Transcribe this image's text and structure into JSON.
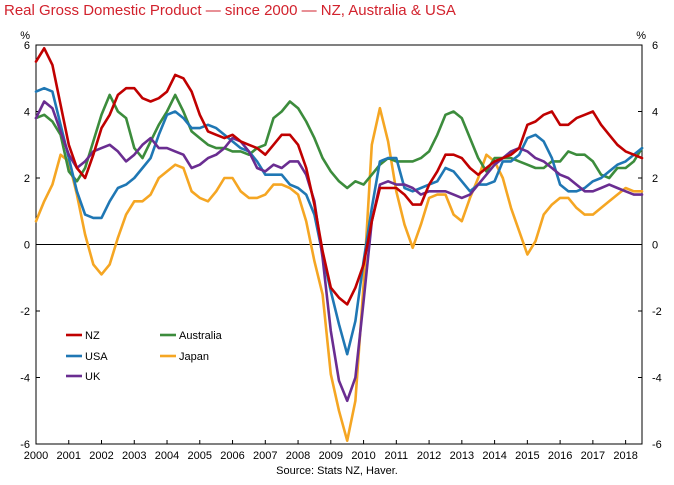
{
  "title": "Real Gross Domestic Product — since 2000 — NZ, Australia & USA",
  "source": "Source: Stats NZ, Haver.",
  "chart_data": {
    "type": "line",
    "title": "Real Gross Domestic Product — since 2000 — NZ, Australia & USA",
    "xlabel": "",
    "ylabel_left": "%",
    "ylabel_right": "%",
    "xlim": [
      2000,
      2018.5
    ],
    "ylim": [
      -6,
      6
    ],
    "yticks": [
      -6,
      -4,
      -2,
      0,
      2,
      4,
      6
    ],
    "xticks": [
      "2000",
      "2001",
      "2002",
      "2003",
      "2004",
      "2005",
      "2006",
      "2007",
      "2008",
      "2009",
      "2010",
      "2011",
      "2012",
      "2013",
      "2014",
      "2015",
      "2016",
      "2017",
      "2018"
    ],
    "grid": false,
    "legend_position": "bottom-left",
    "x": [
      2000.0,
      2000.25,
      2000.5,
      2000.75,
      2001.0,
      2001.25,
      2001.5,
      2001.75,
      2002.0,
      2002.25,
      2002.5,
      2002.75,
      2003.0,
      2003.25,
      2003.5,
      2003.75,
      2004.0,
      2004.25,
      2004.5,
      2004.75,
      2005.0,
      2005.25,
      2005.5,
      2005.75,
      2006.0,
      2006.25,
      2006.5,
      2006.75,
      2007.0,
      2007.25,
      2007.5,
      2007.75,
      2008.0,
      2008.25,
      2008.5,
      2008.75,
      2009.0,
      2009.25,
      2009.5,
      2009.75,
      2010.0,
      2010.25,
      2010.5,
      2010.75,
      2011.0,
      2011.25,
      2011.5,
      2011.75,
      2012.0,
      2012.25,
      2012.5,
      2012.75,
      2013.0,
      2013.25,
      2013.5,
      2013.75,
      2014.0,
      2014.25,
      2014.5,
      2014.75,
      2015.0,
      2015.25,
      2015.5,
      2015.75,
      2016.0,
      2016.25,
      2016.5,
      2016.75,
      2017.0,
      2017.25,
      2017.5,
      2017.75,
      2018.0,
      2018.25,
      2018.5
    ],
    "series": [
      {
        "name": "NZ",
        "color": "#c00000",
        "values": [
          5.5,
          5.9,
          5.4,
          4.2,
          3.0,
          2.3,
          2.0,
          2.7,
          3.5,
          3.9,
          4.5,
          4.7,
          4.7,
          4.4,
          4.3,
          4.4,
          4.6,
          5.1,
          5.0,
          4.6,
          3.9,
          3.4,
          3.3,
          3.2,
          3.3,
          3.1,
          3.0,
          2.9,
          2.7,
          3.0,
          3.3,
          3.3,
          3.0,
          2.3,
          1.2,
          -0.2,
          -1.3,
          -1.6,
          -1.8,
          -1.3,
          -0.6,
          0.7,
          1.7,
          1.7,
          1.7,
          1.5,
          1.2,
          1.2,
          1.8,
          2.2,
          2.7,
          2.7,
          2.6,
          2.3,
          2.1,
          2.3,
          2.5,
          2.6,
          2.7,
          2.9,
          3.6,
          3.7,
          3.9,
          4.0,
          3.6,
          3.6,
          3.8,
          3.9,
          4.0,
          3.6,
          3.3,
          3.0,
          2.8,
          2.7,
          2.6
        ]
      },
      {
        "name": "Australia",
        "color": "#3c8c3c",
        "values": [
          3.8,
          3.9,
          3.7,
          3.3,
          2.2,
          1.9,
          2.3,
          3.1,
          3.9,
          4.5,
          4.0,
          3.8,
          2.9,
          2.6,
          3.1,
          3.6,
          4.0,
          4.5,
          4.0,
          3.4,
          3.2,
          3.0,
          2.9,
          2.9,
          2.8,
          2.8,
          2.7,
          2.9,
          3.0,
          3.8,
          4.0,
          4.3,
          4.1,
          3.7,
          3.2,
          2.6,
          2.2,
          1.9,
          1.7,
          1.9,
          1.8,
          2.1,
          2.4,
          2.6,
          2.5,
          2.5,
          2.5,
          2.6,
          2.8,
          3.3,
          3.9,
          4.0,
          3.8,
          3.2,
          2.6,
          2.2,
          2.6,
          2.6,
          2.6,
          2.5,
          2.4,
          2.3,
          2.3,
          2.5,
          2.5,
          2.8,
          2.7,
          2.7,
          2.5,
          2.1,
          2.0,
          2.3,
          2.3,
          2.5,
          2.9
        ]
      },
      {
        "name": "USA",
        "color": "#1f77b4",
        "values": [
          4.6,
          4.7,
          4.6,
          3.6,
          2.6,
          1.6,
          0.9,
          0.8,
          0.8,
          1.3,
          1.7,
          1.8,
          2.0,
          2.3,
          2.6,
          3.3,
          3.9,
          4.0,
          3.8,
          3.5,
          3.5,
          3.6,
          3.5,
          3.3,
          3.1,
          2.9,
          2.8,
          2.5,
          2.1,
          2.1,
          2.1,
          1.8,
          1.7,
          1.5,
          0.9,
          -0.3,
          -1.4,
          -2.4,
          -3.3,
          -2.3,
          -0.5,
          1.1,
          2.5,
          2.6,
          2.6,
          1.7,
          1.6,
          1.7,
          1.8,
          1.9,
          2.3,
          2.2,
          1.9,
          1.6,
          1.8,
          1.8,
          1.9,
          2.5,
          2.5,
          2.7,
          3.2,
          3.3,
          3.1,
          2.6,
          1.8,
          1.6,
          1.6,
          1.7,
          1.9,
          2.0,
          2.2,
          2.4,
          2.5,
          2.7,
          2.9
        ]
      },
      {
        "name": "Japan",
        "color": "#f5a623",
        "values": [
          0.7,
          1.3,
          1.8,
          2.7,
          2.5,
          1.5,
          0.3,
          -0.6,
          -0.9,
          -0.6,
          0.2,
          0.9,
          1.3,
          1.3,
          1.5,
          2.0,
          2.2,
          2.4,
          2.3,
          1.6,
          1.4,
          1.3,
          1.6,
          2.0,
          2.0,
          1.6,
          1.4,
          1.4,
          1.5,
          1.8,
          1.8,
          1.7,
          1.5,
          0.7,
          -0.5,
          -1.5,
          -3.9,
          -5.0,
          -5.9,
          -4.7,
          -1.2,
          3.0,
          4.1,
          3.1,
          1.6,
          0.6,
          -0.1,
          0.6,
          1.4,
          1.5,
          1.5,
          0.9,
          0.7,
          1.4,
          2.0,
          2.7,
          2.5,
          2.0,
          1.1,
          0.4,
          -0.3,
          0.1,
          0.9,
          1.2,
          1.4,
          1.4,
          1.1,
          0.9,
          0.9,
          1.1,
          1.3,
          1.5,
          1.7,
          1.6,
          1.6
        ]
      },
      {
        "name": "UK",
        "color": "#6a2d91",
        "values": [
          3.8,
          4.3,
          4.1,
          3.4,
          2.7,
          2.3,
          2.5,
          2.8,
          2.9,
          3.0,
          2.8,
          2.5,
          2.7,
          3.0,
          3.2,
          2.9,
          2.9,
          2.8,
          2.7,
          2.3,
          2.4,
          2.6,
          2.7,
          2.9,
          3.2,
          3.1,
          2.8,
          2.3,
          2.2,
          2.4,
          2.3,
          2.5,
          2.5,
          2.1,
          1.3,
          -0.4,
          -2.6,
          -4.1,
          -4.7,
          -4.0,
          -1.7,
          0.7,
          1.8,
          1.9,
          1.8,
          1.8,
          1.7,
          1.5,
          1.6,
          1.6,
          1.6,
          1.5,
          1.4,
          1.5,
          1.8,
          2.1,
          2.4,
          2.6,
          2.8,
          2.9,
          2.8,
          2.6,
          2.5,
          2.3,
          2.1,
          2.0,
          1.8,
          1.6,
          1.6,
          1.7,
          1.8,
          1.7,
          1.6,
          1.5,
          1.5
        ]
      }
    ]
  }
}
